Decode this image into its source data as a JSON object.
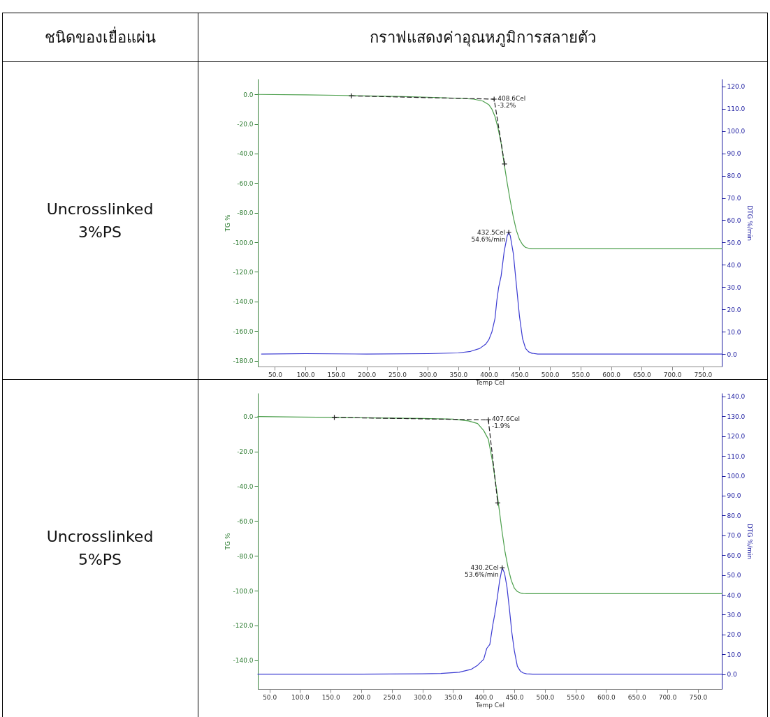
{
  "chart_data": [
    {
      "type": "line",
      "title": "Uncrosslinked\n3%PS",
      "xlabel": "Temp Cel",
      "ylabel": "TG %",
      "y2label": "DTG %/min",
      "xlim": [
        22,
        781
      ],
      "ylim": [
        -184,
        10.5
      ],
      "y2lim": [
        -5.6,
        123.4
      ],
      "xticks": [
        {
          "value": 50,
          "label": "50.0"
        },
        {
          "value": 100,
          "label": "100.0"
        },
        {
          "value": 150,
          "label": "150.0"
        },
        {
          "value": 200,
          "label": "200.0"
        },
        {
          "value": 250,
          "label": "250.0"
        },
        {
          "value": 300,
          "label": "300.0"
        },
        {
          "value": 350,
          "label": "350.0"
        },
        {
          "value": 400,
          "label": "400.0"
        },
        {
          "value": 450,
          "label": "450.0"
        },
        {
          "value": 500,
          "label": "500.0"
        },
        {
          "value": 550,
          "label": "550.0"
        },
        {
          "value": 600,
          "label": "600.0"
        },
        {
          "value": 650,
          "label": "650.0"
        },
        {
          "value": 700,
          "label": "700.0"
        },
        {
          "value": 750,
          "label": "750.0"
        }
      ],
      "yticks": [
        {
          "value": 0,
          "label": "0.0"
        },
        {
          "value": -20,
          "label": "-20.0"
        },
        {
          "value": -40,
          "label": "-40.0"
        },
        {
          "value": -60,
          "label": "-60.0"
        },
        {
          "value": -80,
          "label": "-80.0"
        },
        {
          "value": -100,
          "label": "-100.0"
        },
        {
          "value": -120,
          "label": "-120.0"
        },
        {
          "value": -140,
          "label": "-140.0"
        },
        {
          "value": -160,
          "label": "-160.0"
        },
        {
          "value": -180,
          "label": "-180.0"
        }
      ],
      "y2ticks": [
        {
          "value": 0,
          "label": "0.0"
        },
        {
          "value": 10,
          "label": "10.0"
        },
        {
          "value": 20,
          "label": "20.0"
        },
        {
          "value": 30,
          "label": "30.0"
        },
        {
          "value": 40,
          "label": "40.0"
        },
        {
          "value": 50,
          "label": "50.0"
        },
        {
          "value": 60,
          "label": "60.0"
        },
        {
          "value": 70,
          "label": "70.0"
        },
        {
          "value": 80,
          "label": "80.0"
        },
        {
          "value": 90,
          "label": "90.0"
        },
        {
          "value": 100,
          "label": "100.0"
        },
        {
          "value": 110,
          "label": "110.0"
        },
        {
          "value": 120,
          "label": "120.0"
        }
      ],
      "grid": false,
      "series": [
        {
          "type": "line",
          "color": "#4c9f4c",
          "x": [
            22,
            100,
            150,
            200,
            250,
            300,
            350,
            375,
            390,
            400,
            405,
            410,
            415,
            420,
            425,
            430,
            435,
            440,
            445,
            450,
            455,
            460,
            465,
            470,
            781
          ],
          "values": [
            0,
            -0.3,
            -0.6,
            -1,
            -1.4,
            -1.9,
            -2.6,
            -3.2,
            -4.5,
            -7,
            -10,
            -15,
            -23,
            -33,
            -47,
            -60,
            -72,
            -83,
            -92,
            -98,
            -101.5,
            -103.5,
            -104,
            -104.3,
            -104.3
          ]
        },
        {
          "type": "line",
          "color": "#222222",
          "line_style": "dashed",
          "marker": "cross",
          "x": [
            175,
            408.6,
            425.6
          ],
          "values": [
            -1,
            -3.2,
            -47
          ]
        },
        {
          "type": "line",
          "axis": "y2",
          "color": "#3c3cd2",
          "x": [
            28,
            100,
            200,
            300,
            350,
            370,
            385,
            395,
            400,
            405,
            410,
            413,
            416,
            420,
            425,
            430,
            432.5,
            435,
            440,
            445,
            450,
            455,
            460,
            465,
            470,
            480,
            781
          ],
          "values": [
            0,
            0.2,
            0,
            0.2,
            0.5,
            1.2,
            2.5,
            4.5,
            6.5,
            10,
            16,
            24,
            30,
            35,
            46,
            53,
            54.6,
            53,
            45,
            31,
            17,
            7,
            2.5,
            1,
            0.4,
            0,
            0
          ]
        },
        {
          "type": "scatter",
          "axis": "y2",
          "color": "#222222",
          "marker": "cross",
          "x": [
            432.5
          ],
          "values": [
            54.6
          ]
        }
      ],
      "annotations": [
        "ชนิดของเยื่อแผ่น",
        "กราฟแสดงค่าอุณหภูมิการสลายตัว",
        {
          "text": "408.6Cel\n-3.2%",
          "x": 408.6,
          "y": -3.2
        },
        "432.5Cel\n54.6%/min"
      ]
    },
    {
      "type": "line",
      "title": "Uncrosslinked\n5%PS",
      "xlabel": "Temp Cel",
      "ylabel": "TG %",
      "y2label": "DTG %/min",
      "xlim": [
        31,
        789
      ],
      "ylim": [
        -156.5,
        13.5
      ],
      "y2lim": [
        -7.5,
        141.7
      ],
      "xticks": [
        {
          "value": 50,
          "label": "50.0"
        },
        {
          "value": 100,
          "label": "100.0"
        },
        {
          "value": 150,
          "label": "150.0"
        },
        {
          "value": 200,
          "label": "200.0"
        },
        {
          "value": 250,
          "label": "250.0"
        },
        {
          "value": 300,
          "label": "300.0"
        },
        {
          "value": 350,
          "label": "350.0"
        },
        {
          "value": 400,
          "label": "400.0"
        },
        {
          "value": 450,
          "label": "450.0"
        },
        {
          "value": 500,
          "label": "500.0"
        },
        {
          "value": 550,
          "label": "550.0"
        },
        {
          "value": 600,
          "label": "600.0"
        },
        {
          "value": 650,
          "label": "650.0"
        },
        {
          "value": 700,
          "label": "700.0"
        },
        {
          "value": 750,
          "label": "750.0"
        }
      ],
      "yticks": [
        {
          "value": 0,
          "label": "0.0"
        },
        {
          "value": -20,
          "label": "-20.0"
        },
        {
          "value": -40,
          "label": "-40.0"
        },
        {
          "value": -60,
          "label": "-60.0"
        },
        {
          "value": -80,
          "label": "-80.0"
        },
        {
          "value": -100,
          "label": "-100.0"
        },
        {
          "value": -120,
          "label": "-120.0"
        },
        {
          "value": -140,
          "label": "-140.0"
        }
      ],
      "y2ticks": [
        {
          "value": 0,
          "label": "0.0"
        },
        {
          "value": 10,
          "label": "10.0"
        },
        {
          "value": 20,
          "label": "20.0"
        },
        {
          "value": 30,
          "label": "30.0"
        },
        {
          "value": 40,
          "label": "40.0"
        },
        {
          "value": 50,
          "label": "50.0"
        },
        {
          "value": 60,
          "label": "60.0"
        },
        {
          "value": 70,
          "label": "70.0"
        },
        {
          "value": 80,
          "label": "80.0"
        },
        {
          "value": 90,
          "label": "90.0"
        },
        {
          "value": 100,
          "label": "100.0"
        },
        {
          "value": 110,
          "label": "110.0"
        },
        {
          "value": 120,
          "label": "120.0"
        },
        {
          "value": 130,
          "label": "130.0"
        },
        {
          "value": 140,
          "label": "140.0"
        }
      ],
      "grid": false,
      "series": [
        {
          "type": "line",
          "color": "#4c9f4c",
          "x": [
            31,
            100,
            156,
            200,
            250,
            300,
            350,
            375,
            390,
            400,
            407.6,
            415,
            423,
            430,
            435,
            440,
            445,
            450,
            455,
            460,
            465,
            470,
            789
          ],
          "values": [
            0,
            -0.3,
            -0.5,
            -0.7,
            -0.9,
            -1.1,
            -1.5,
            -2.5,
            -4,
            -8,
            -13,
            -27,
            -47,
            -66,
            -78,
            -87,
            -94,
            -98.5,
            -100.5,
            -101.3,
            -101.6,
            -101.7,
            -101.7
          ]
        },
        {
          "type": "line",
          "color": "#222222",
          "line_style": "dashed",
          "marker": "cross",
          "x": [
            156,
            407.6,
            423
          ],
          "values": [
            -0.5,
            -1.9,
            -49.6
          ]
        },
        {
          "type": "line",
          "axis": "y2",
          "color": "#3c3cd2",
          "x": [
            31,
            100,
            200,
            300,
            330,
            360,
            380,
            390,
            395,
            400,
            405,
            410,
            415,
            418,
            422,
            426,
            430.2,
            434,
            438,
            442,
            446,
            450,
            455,
            460,
            465,
            470,
            480,
            789
          ],
          "values": [
            0,
            0,
            0,
            0.2,
            0.4,
            1,
            2.5,
            4.5,
            6,
            7.5,
            13,
            15,
            25,
            30,
            38,
            47,
            53.6,
            51,
            44,
            33,
            21,
            12,
            4,
            1.5,
            0.6,
            0.2,
            0,
            0
          ]
        },
        {
          "type": "scatter",
          "axis": "y2",
          "color": "#222222",
          "marker": "cross",
          "x": [
            430.2
          ],
          "values": [
            53.6
          ]
        }
      ],
      "annotations": [
        {
          "text": "407.6Cel\n-1.9%",
          "x": 407.6,
          "y": -1.9
        },
        "430.2Cel\n53.6%/min"
      ]
    }
  ]
}
